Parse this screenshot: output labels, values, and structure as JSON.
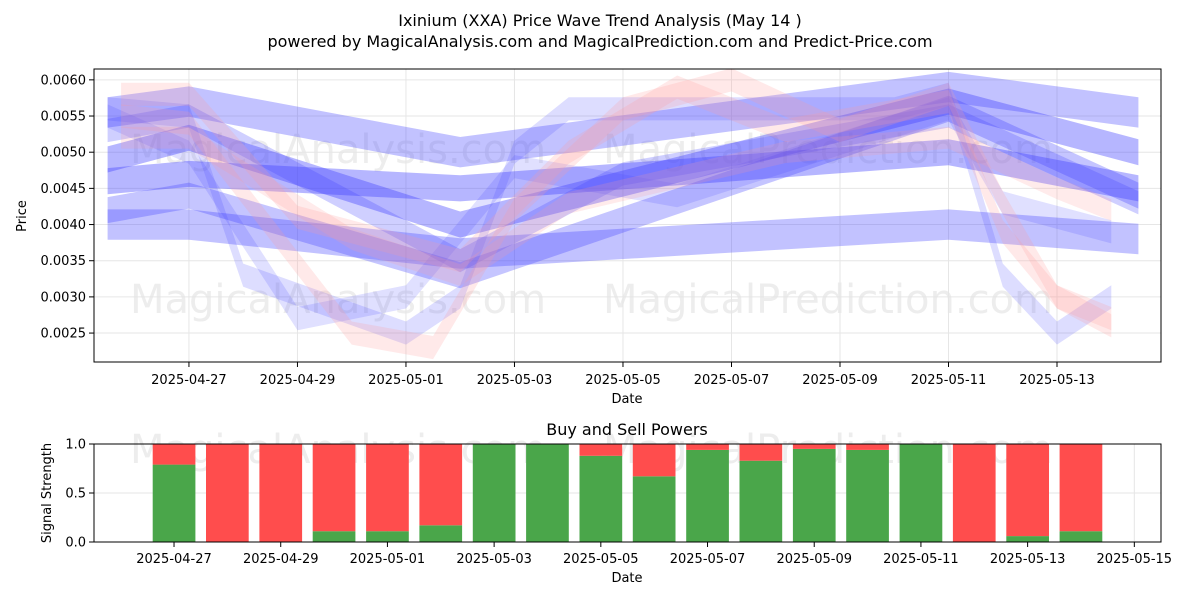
{
  "title_line1": "Ixinium (XXA) Price Wave Trend Analysis (May 14 )",
  "title_line2": "powered by MagicalAnalysis.com and MagicalPrediction.com and Predict-Price.com",
  "watermarks": [
    "MagicalAnalysis.com",
    "MagicalPrediction.com"
  ],
  "colors": {
    "buy": "#4aa64a",
    "sell": "#ff4d4d",
    "wave_blue": "#4040ff",
    "wave_red": "#ff9999",
    "grid": "#e6e6e6"
  },
  "chart_data": [
    {
      "type": "area",
      "name": "price-wave",
      "xlabel": "Date",
      "ylabel": "Price",
      "xlim": [
        "2025-04-25T06:00",
        "2025-05-14T22:00"
      ],
      "ylim": [
        0.0021,
        0.00615
      ],
      "x_ticks": [
        "2025-04-27",
        "2025-04-29",
        "2025-05-01",
        "2025-05-03",
        "2025-05-05",
        "2025-05-07",
        "2025-05-09",
        "2025-05-11",
        "2025-05-13"
      ],
      "y_ticks": [
        0.0025,
        0.003,
        0.0035,
        0.004,
        0.0045,
        0.005,
        0.0055,
        0.006
      ],
      "y_tick_labels": [
        "0.0025",
        "0.0030",
        "0.0035",
        "0.0040",
        "0.0045",
        "0.0050",
        "0.0055",
        "0.0060"
      ],
      "grid": true,
      "bands": [
        {
          "color": "blue",
          "opacity": 0.32,
          "half_width": 0.00021,
          "points": [
            [
              "2025-04-25T12:00",
              0.00555
            ],
            [
              "2025-04-27",
              0.0057
            ],
            [
              "2025-05-02",
              0.005
            ],
            [
              "2025-05-11",
              0.0059
            ],
            [
              "2025-05-14T12:00",
              0.00555
            ]
          ]
        },
        {
          "color": "blue",
          "opacity": 0.32,
          "half_width": 0.00021,
          "points": [
            [
              "2025-04-25T12:00",
              0.004
            ],
            [
              "2025-04-27",
              0.004
            ],
            [
              "2025-05-02",
              0.0036
            ],
            [
              "2025-05-11",
              0.004
            ],
            [
              "2025-05-14T12:00",
              0.0038
            ]
          ]
        },
        {
          "color": "blue",
          "opacity": 0.38,
          "half_width": 0.00018,
          "points": [
            [
              "2025-04-25T12:00",
              0.0046
            ],
            [
              "2025-04-27",
              0.0047
            ],
            [
              "2025-05-02",
              0.0045
            ],
            [
              "2025-05-11",
              0.005
            ],
            [
              "2025-05-14T12:00",
              0.0045
            ]
          ]
        },
        {
          "color": "blue",
          "opacity": 0.38,
          "half_width": 0.00018,
          "points": [
            [
              "2025-04-25T12:00",
              0.0049
            ],
            [
              "2025-04-27",
              0.0052
            ],
            [
              "2025-05-02",
              0.004
            ],
            [
              "2025-05-11",
              0.0057
            ],
            [
              "2025-05-14T12:00",
              0.005
            ]
          ]
        },
        {
          "color": "blue",
          "opacity": 0.3,
          "half_width": 0.00018,
          "points": [
            [
              "2025-04-25T12:00",
              0.0042
            ],
            [
              "2025-04-27",
              0.0044
            ],
            [
              "2025-05-02",
              0.0033
            ],
            [
              "2025-05-11",
              0.0056
            ],
            [
              "2025-05-14T12:00",
              0.0044
            ]
          ]
        },
        {
          "color": "blue",
          "opacity": 0.25,
          "half_width": 0.00016,
          "points": [
            [
              "2025-04-25T12:00",
              0.0053
            ],
            [
              "2025-04-27",
              0.0055
            ],
            [
              "2025-05-02",
              0.0035
            ],
            [
              "2025-05-05",
              0.0047
            ],
            [
              "2025-05-11",
              0.0055
            ],
            [
              "2025-05-14T12:00",
              0.0043
            ]
          ]
        },
        {
          "color": "blue",
          "opacity": 0.18,
          "half_width": 0.00016,
          "points": [
            [
              "2025-04-25T12:00",
              0.0056
            ],
            [
              "2025-04-27",
              0.0055
            ],
            [
              "2025-04-28",
              0.0033
            ],
            [
              "2025-05-01",
              0.0025
            ],
            [
              "2025-05-02",
              0.003
            ],
            [
              "2025-05-03",
              0.005
            ],
            [
              "2025-05-04",
              0.0056
            ],
            [
              "2025-05-10",
              0.0056
            ],
            [
              "2025-05-11",
              0.0058
            ],
            [
              "2025-05-12",
              0.0033
            ],
            [
              "2025-05-13",
              0.0025
            ],
            [
              "2025-05-14",
              0.003
            ]
          ]
        },
        {
          "color": "blue",
          "opacity": 0.16,
          "half_width": 0.00016,
          "points": [
            [
              "2025-04-25T12:00",
              0.0055
            ],
            [
              "2025-04-27",
              0.005
            ],
            [
              "2025-04-29",
              0.0027
            ],
            [
              "2025-05-01",
              0.003
            ],
            [
              "2025-05-03",
              0.0048
            ],
            [
              "2025-05-06",
              0.0044
            ],
            [
              "2025-05-11",
              0.0056
            ],
            [
              "2025-05-12",
              0.0043
            ],
            [
              "2025-05-14",
              0.0039
            ]
          ]
        },
        {
          "color": "red",
          "opacity": 0.22,
          "half_width": 0.00016,
          "points": [
            [
              "2025-04-25T18:00",
              0.0058
            ],
            [
              "2025-04-27",
              0.0058
            ],
            [
              "2025-04-29",
              0.0041
            ],
            [
              "2025-05-02",
              0.0035
            ],
            [
              "2025-05-04",
              0.005
            ],
            [
              "2025-05-06",
              0.0059
            ],
            [
              "2025-05-08",
              0.0053
            ],
            [
              "2025-05-11",
              0.0057
            ],
            [
              "2025-05-12",
              0.0039
            ],
            [
              "2025-05-13",
              0.003
            ],
            [
              "2025-05-14",
              0.0027
            ]
          ]
        },
        {
          "color": "red",
          "opacity": 0.22,
          "half_width": 0.00016,
          "points": [
            [
              "2025-04-25T18:00",
              0.0055
            ],
            [
              "2025-04-27",
              0.0054
            ],
            [
              "2025-04-30",
              0.0025
            ],
            [
              "2025-05-01T12:00",
              0.0023
            ],
            [
              "2025-05-03",
              0.0042
            ],
            [
              "2025-05-05",
              0.0056
            ],
            [
              "2025-05-07",
              0.006
            ],
            [
              "2025-05-09",
              0.0053
            ],
            [
              "2025-05-11",
              0.0058
            ],
            [
              "2025-05-12",
              0.0043
            ],
            [
              "2025-05-13",
              0.003
            ],
            [
              "2025-05-14",
              0.0026
            ]
          ]
        },
        {
          "color": "red",
          "opacity": 0.2,
          "half_width": 0.00015,
          "points": [
            [
              "2025-04-25T18:00",
              0.0052
            ],
            [
              "2025-04-27",
              0.0052
            ],
            [
              "2025-04-30",
              0.0038
            ],
            [
              "2025-05-02",
              0.0033
            ],
            [
              "2025-05-04",
              0.0043
            ],
            [
              "2025-05-08",
              0.005
            ],
            [
              "2025-05-11",
              0.0052
            ],
            [
              "2025-05-13",
              0.0045
            ],
            [
              "2025-05-14",
              0.0042
            ]
          ]
        }
      ]
    },
    {
      "type": "bar",
      "name": "buy-sell-powers",
      "title": "Buy and Sell Powers",
      "xlabel": "Date",
      "ylabel": "Signal Strength",
      "ylim": [
        0,
        1.0
      ],
      "xlim": [
        "2025-04-25T12:00",
        "2025-05-15T12:00"
      ],
      "x_ticks": [
        "2025-04-27",
        "2025-04-29",
        "2025-05-01",
        "2025-05-03",
        "2025-05-05",
        "2025-05-07",
        "2025-05-09",
        "2025-05-11",
        "2025-05-13",
        "2025-05-15"
      ],
      "y_ticks": [
        0.0,
        0.5,
        1.0
      ],
      "y_tick_labels": [
        "0.0",
        "0.5",
        "1.0"
      ],
      "categories": [
        "2025-04-27",
        "2025-04-28",
        "2025-04-29",
        "2025-04-30",
        "2025-05-01",
        "2025-05-02",
        "2025-05-03",
        "2025-05-04",
        "2025-05-05",
        "2025-05-06",
        "2025-05-07",
        "2025-05-08",
        "2025-05-09",
        "2025-05-10",
        "2025-05-11",
        "2025-05-12",
        "2025-05-13",
        "2025-05-14"
      ],
      "series": [
        {
          "name": "Buy",
          "values": [
            0.79,
            0.0,
            0.0,
            0.11,
            0.11,
            0.17,
            1.0,
            1.0,
            0.88,
            0.67,
            0.94,
            0.83,
            0.95,
            0.94,
            1.0,
            0.0,
            0.06,
            0.11
          ]
        },
        {
          "name": "Sell",
          "values": [
            0.21,
            1.0,
            1.0,
            0.89,
            0.89,
            0.83,
            0.0,
            0.0,
            0.12,
            0.33,
            0.06,
            0.17,
            0.05,
            0.06,
            0.0,
            1.0,
            0.94,
            0.89
          ]
        }
      ]
    }
  ]
}
